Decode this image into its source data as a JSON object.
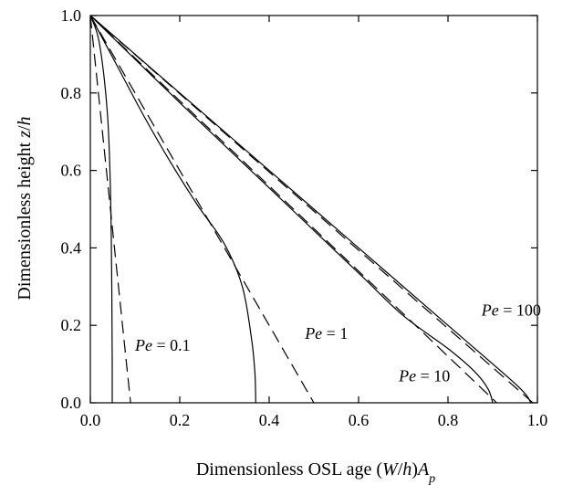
{
  "chart_data": {
    "type": "line",
    "xlim": [
      0.0,
      1.0
    ],
    "ylim": [
      0.0,
      1.0
    ],
    "x_ticks": [
      "0.0",
      "0.2",
      "0.4",
      "0.6",
      "0.8",
      "1.0"
    ],
    "y_ticks": [
      "0.0",
      "0.2",
      "0.4",
      "0.6",
      "0.8",
      "1.0"
    ],
    "xlabel": {
      "prefix": "Dimensionless OSL age (",
      "var_w": "W",
      "mid": "/",
      "var_h": "h",
      "close": ")",
      "var_a": "A",
      "sub": "p"
    },
    "ylabel": {
      "prefix": "Dimensionless height ",
      "var": "z",
      "mid": "/",
      "var2": "h"
    },
    "grid": false,
    "legend": "none",
    "series": [
      {
        "style": "solid",
        "group": "0.1",
        "points": [
          [
            0.0,
            1.0
          ],
          [
            0.02,
            0.93
          ],
          [
            0.038,
            0.75
          ],
          [
            0.045,
            0.55
          ],
          [
            0.048,
            0.3
          ],
          [
            0.049,
            0.1
          ],
          [
            0.049,
            0.0
          ]
        ]
      },
      {
        "style": "dashed",
        "group": "0.1",
        "points": [
          [
            0.0,
            1.0
          ],
          [
            0.09,
            0.0
          ]
        ]
      },
      {
        "style": "solid",
        "group": "1",
        "points": [
          [
            0.0,
            1.0
          ],
          [
            0.06,
            0.87
          ],
          [
            0.12,
            0.74
          ],
          [
            0.18,
            0.62
          ],
          [
            0.24,
            0.51
          ],
          [
            0.3,
            0.41
          ],
          [
            0.34,
            0.3
          ],
          [
            0.36,
            0.17
          ],
          [
            0.368,
            0.08
          ],
          [
            0.37,
            0.0
          ]
        ]
      },
      {
        "style": "dashed",
        "group": "1",
        "points": [
          [
            0.0,
            1.0
          ],
          [
            0.5,
            0.0
          ]
        ]
      },
      {
        "style": "solid",
        "group": "10",
        "points": [
          [
            0.0,
            1.0
          ],
          [
            0.2,
            0.775
          ],
          [
            0.4,
            0.555
          ],
          [
            0.6,
            0.335
          ],
          [
            0.7,
            0.225
          ],
          [
            0.8,
            0.14
          ],
          [
            0.86,
            0.08
          ],
          [
            0.89,
            0.035
          ],
          [
            0.9,
            0.0
          ]
        ]
      },
      {
        "style": "dashed",
        "group": "10",
        "points": [
          [
            0.0,
            1.0
          ],
          [
            0.909,
            0.0
          ]
        ]
      },
      {
        "style": "solid",
        "group": "100",
        "points": [
          [
            0.0,
            1.0
          ],
          [
            0.2,
            0.8
          ],
          [
            0.4,
            0.6
          ],
          [
            0.6,
            0.4
          ],
          [
            0.8,
            0.2
          ],
          [
            0.94,
            0.06
          ],
          [
            0.975,
            0.02
          ],
          [
            0.985,
            0.0
          ]
        ]
      },
      {
        "style": "dashed",
        "group": "100",
        "points": [
          [
            0.0,
            1.0
          ],
          [
            0.99,
            0.0
          ]
        ]
      }
    ],
    "annotations": [
      {
        "var": "Pe",
        "eq": " = 0.1",
        "x": 0.1,
        "y": 0.135
      },
      {
        "var": "Pe",
        "eq": " = 1",
        "x": 0.48,
        "y": 0.165
      },
      {
        "var": "Pe",
        "eq": " = 10",
        "x": 0.69,
        "y": 0.055
      },
      {
        "var": "Pe",
        "eq": " = 100",
        "x": 0.875,
        "y": 0.225
      }
    ]
  }
}
